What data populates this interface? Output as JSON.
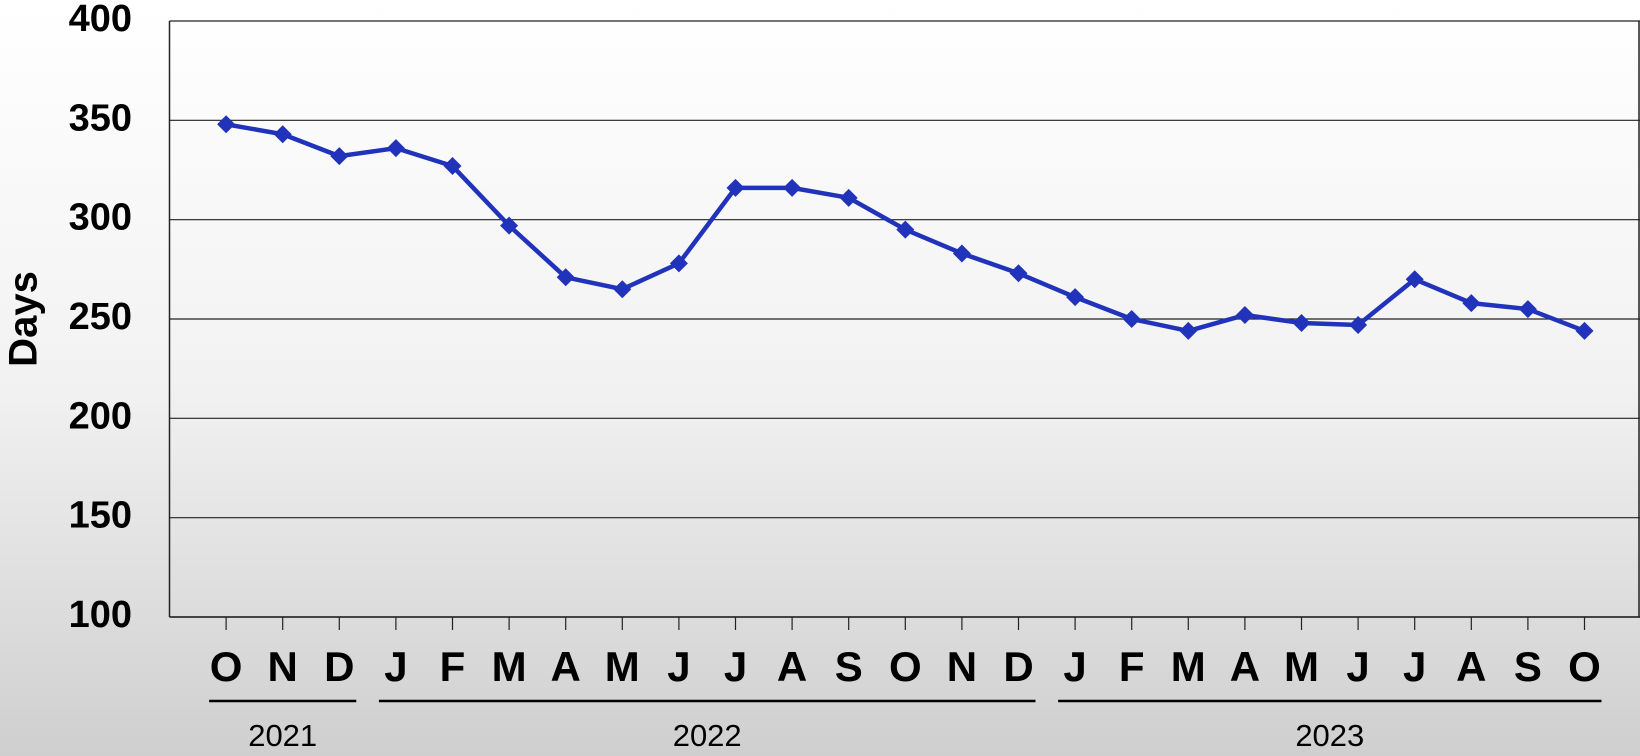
{
  "chart_data": {
    "type": "line",
    "y_label": "Days",
    "groups": [
      {
        "label": "2021",
        "categories": [
          "O",
          "N",
          "D"
        ]
      },
      {
        "label": "2022",
        "categories": [
          "J",
          "F",
          "M",
          "A",
          "M",
          "J",
          "J",
          "A",
          "S",
          "O",
          "N",
          "D"
        ]
      },
      {
        "label": "2023",
        "categories": [
          "J",
          "F",
          "M",
          "A",
          "M",
          "J",
          "J",
          "A",
          "S",
          "O"
        ]
      }
    ],
    "series": [
      {
        "color": "#2233bb",
        "values": [
          348,
          343,
          332,
          336,
          327,
          297,
          271,
          265,
          278,
          316,
          316,
          311,
          295,
          283,
          273,
          261,
          250,
          244,
          252,
          248,
          247,
          270,
          258,
          255,
          244
        ]
      }
    ],
    "ylim": [
      100,
      400
    ],
    "yticks": [
      100,
      150,
      200,
      250,
      300,
      350,
      400
    ],
    "grid": true,
    "marker": "diamond"
  }
}
